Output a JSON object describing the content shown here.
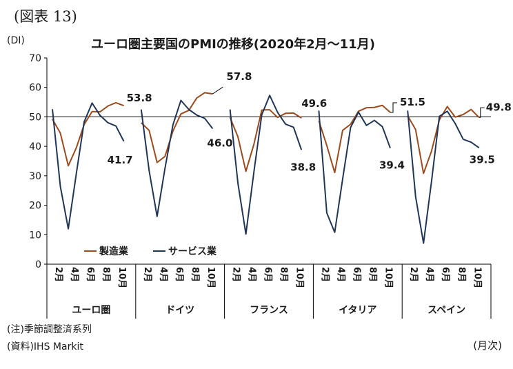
{
  "figure_label": "(図表 13)",
  "note": "(注)季節調整済系列",
  "source": "(資料)IHS Markit",
  "period_unit": "(月次)",
  "colors": {
    "manufacturing": "#9c4a1b",
    "services": "#1f3557",
    "reference": "#000000"
  },
  "chart_data": {
    "type": "line",
    "title": "ユーロ圏主要国のPMIの推移(2020年2月～11月)",
    "ylabel": "(DI)",
    "ylim": [
      0,
      70
    ],
    "yticks": [
      0,
      10,
      20,
      30,
      40,
      50,
      60,
      70
    ],
    "reference_line": 50,
    "legend_position": "lower-left",
    "x_tick_labels": [
      "2月",
      "4月",
      "6月",
      "8月",
      "10月"
    ],
    "series_names": [
      "製造業",
      "サービス業"
    ],
    "groups": [
      {
        "name": "ユーロ圏",
        "manufacturing": [
          49.2,
          44.5,
          33.4,
          39.4,
          47.4,
          51.8,
          51.7,
          53.7,
          54.8,
          53.8
        ],
        "services": [
          52.6,
          26.4,
          12.0,
          30.5,
          48.3,
          54.7,
          50.5,
          48.0,
          46.9,
          41.7
        ],
        "labels": {
          "manufacturing": "53.8",
          "services": "41.7"
        }
      },
      {
        "name": "ドイツ",
        "manufacturing": [
          48.0,
          45.4,
          34.5,
          36.6,
          45.2,
          51.0,
          52.2,
          56.4,
          58.2,
          57.8
        ],
        "services": [
          52.5,
          31.7,
          16.2,
          32.6,
          47.3,
          55.6,
          52.5,
          50.6,
          49.5,
          46.0
        ],
        "labels": {
          "manufacturing": "57.8",
          "services": "46.0"
        }
      },
      {
        "name": "フランス",
        "manufacturing": [
          49.8,
          43.2,
          31.5,
          40.6,
          52.3,
          52.4,
          49.8,
          51.2,
          51.3,
          49.6
        ],
        "services": [
          52.5,
          27.4,
          10.2,
          31.1,
          50.7,
          57.3,
          51.5,
          47.5,
          46.5,
          38.8
        ],
        "labels": {
          "manufacturing": "49.6",
          "services": "38.8"
        }
      },
      {
        "name": "イタリア",
        "manufacturing": [
          48.7,
          40.3,
          31.1,
          45.4,
          47.5,
          51.9,
          53.1,
          53.2,
          53.9,
          51.5
        ],
        "services": [
          52.1,
          17.4,
          10.8,
          28.9,
          46.4,
          51.6,
          47.1,
          48.8,
          46.7,
          39.4
        ],
        "labels": {
          "manufacturing": "51.5",
          "services": "39.4"
        }
      },
      {
        "name": "スペイン",
        "manufacturing": [
          50.4,
          45.7,
          30.8,
          38.3,
          49.0,
          53.5,
          49.9,
          50.8,
          52.5,
          49.8
        ],
        "services": [
          52.1,
          23.0,
          7.1,
          27.9,
          50.2,
          51.9,
          47.7,
          42.4,
          41.4,
          39.5
        ],
        "labels": {
          "manufacturing": "49.8",
          "services": "39.5"
        }
      }
    ]
  }
}
